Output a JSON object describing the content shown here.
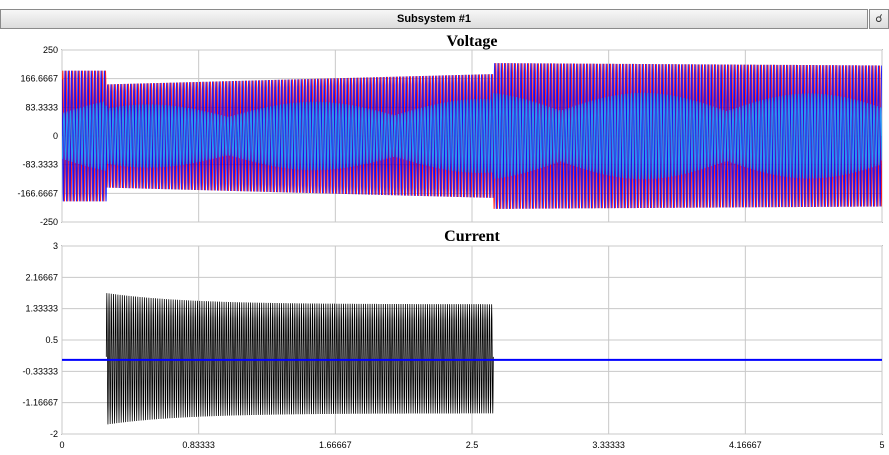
{
  "window": {
    "title": "Subsystem #1",
    "pin_icon": "pin-icon"
  },
  "chart_data": [
    {
      "type": "line",
      "title": "Voltage",
      "xlim": [
        0,
        5
      ],
      "ylim": [
        -250,
        250
      ],
      "y_ticks": [
        "250",
        "166.6667",
        "83.3333",
        "0",
        "-83.3333",
        "-166.6667",
        "-250"
      ],
      "y_tick_values": [
        250,
        166.6667,
        83.3333,
        0,
        -83.3333,
        -166.6667,
        -250
      ],
      "x_tick_values": [
        0,
        0.83333,
        1.66667,
        2.5,
        3.33333,
        4.16667,
        5
      ],
      "grid": true,
      "segments": [
        {
          "x0": 0,
          "x1": 0.27,
          "amp0": 190,
          "amp1": 190
        },
        {
          "x0": 0.27,
          "x1": 2.63,
          "amp0": 150,
          "amp1": 180
        },
        {
          "x0": 2.63,
          "x1": 5,
          "amp0": 212,
          "amp1": 205
        }
      ],
      "series": [
        {
          "color": "#ff0000"
        },
        {
          "color": "#0000ff"
        },
        {
          "color": "#1aa3ff"
        }
      ]
    },
    {
      "type": "line",
      "title": "Current",
      "xlim": [
        0,
        5
      ],
      "ylim": [
        -2,
        3
      ],
      "y_ticks": [
        "3",
        "2.16667",
        "1.33333",
        "0.5",
        "-0.33333",
        "-1.16667",
        "-2"
      ],
      "y_tick_values": [
        3,
        2.16667,
        1.33333,
        0.5,
        -0.33333,
        -1.16667,
        -2
      ],
      "x_ticks": [
        "0",
        "0.83333",
        "1.66667",
        "2.5",
        "3.33333",
        "4.16667",
        "5"
      ],
      "x_tick_values": [
        0,
        0.83333,
        1.66667,
        2.5,
        3.33333,
        4.16667,
        5
      ],
      "grid": true,
      "oscillation": {
        "x0": 0.27,
        "x1": 2.63,
        "center": 0.05,
        "peak_start": 1.75,
        "trough_start": -1.75,
        "peak_end": 1.45,
        "trough_end": -1.45,
        "color": "#000000"
      },
      "baseline": {
        "y": -0.03,
        "color": "#0000ff"
      }
    }
  ]
}
